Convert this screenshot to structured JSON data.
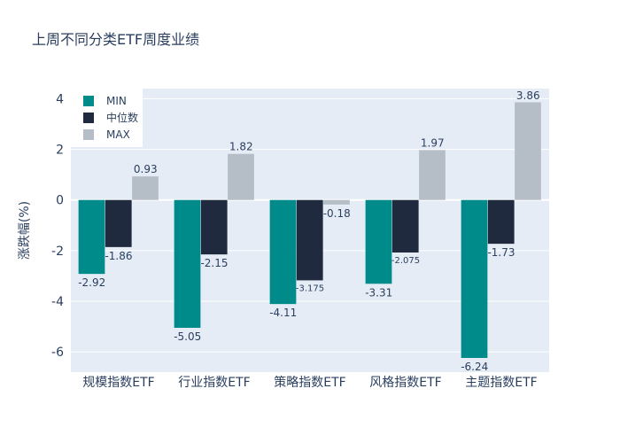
{
  "chart_data": {
    "type": "bar",
    "title": "上周不同分类ETF周度业绩",
    "xlabel": "",
    "ylabel": "涨跌幅(%)",
    "ylim": [
      -6.8,
      4.4
    ],
    "yticks": [
      -6,
      -4,
      -2,
      0,
      2,
      4
    ],
    "grid": true,
    "legend_position": "top-left",
    "categories": [
      "规模指数ETF",
      "行业指数ETF",
      "策略指数ETF",
      "风格指数ETF",
      "主题指数ETF"
    ],
    "series": [
      {
        "name": "MIN",
        "color": "#008b8b",
        "values": [
          -2.92,
          -5.05,
          -4.11,
          -3.31,
          -6.24
        ],
        "labels": [
          "-2.92",
          "-5.05",
          "-4.11",
          "-3.31",
          "-6.24"
        ]
      },
      {
        "name": "中位数",
        "color": "#1f2a3f",
        "values": [
          -1.86,
          -2.15,
          -3.175,
          -2.075,
          -1.73
        ],
        "labels": [
          "-1.86",
          "-2.15",
          "-3.175",
          "-2.075",
          "-1.73"
        ]
      },
      {
        "name": "MAX",
        "color": "#b5bdc6",
        "values": [
          0.93,
          1.82,
          -0.18,
          1.97,
          3.86
        ],
        "labels": [
          "0.93",
          "1.82",
          "-0.18",
          "1.97",
          "3.86"
        ]
      }
    ]
  }
}
